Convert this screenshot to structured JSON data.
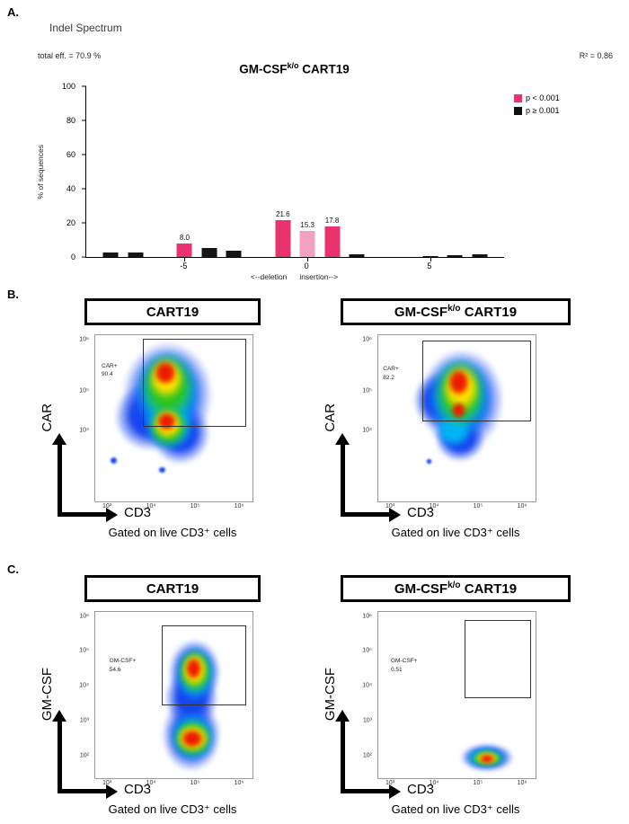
{
  "panel_a": {
    "label": "A.",
    "section_title": "Indel Spectrum",
    "total_eff": "total eff. = 70.9 %",
    "r_squared": "R² = 0.86",
    "title": {
      "pre": "GM-CSF",
      "sup": "k/o",
      "post": " CART19"
    },
    "legend": [
      {
        "label": "p < 0.001",
        "color": "#e8336d"
      },
      {
        "label": "p ≥ 0.001",
        "color": "#111111"
      }
    ],
    "ylabel": "% of sequences",
    "x_caption_left": "<--deletion",
    "x_caption_right": "insertion-->"
  },
  "chart_data": {
    "type": "bar",
    "title": "GM-CSF k/o CART19",
    "ylabel": "% of sequences",
    "xlabel": "<--deletion insertion-->",
    "ylim": [
      0,
      100
    ],
    "yticks": [
      0,
      20,
      40,
      60,
      80,
      100
    ],
    "xticks": [
      -5,
      0,
      5
    ],
    "xrange": [
      -9,
      8
    ],
    "grid": false,
    "legend_position": "top-right",
    "bars": [
      {
        "x": -8,
        "value": 2.5,
        "color": "black"
      },
      {
        "x": -7,
        "value": 2.5,
        "color": "black"
      },
      {
        "x": -5,
        "value": 8.0,
        "color": "pink",
        "label": "8.0"
      },
      {
        "x": -4,
        "value": 5.5,
        "color": "black"
      },
      {
        "x": -3,
        "value": 3.5,
        "color": "black"
      },
      {
        "x": -1,
        "value": 21.6,
        "color": "pink",
        "label": "21.6"
      },
      {
        "x": 0,
        "value": 15.3,
        "color": "lightpink",
        "label": "15.3"
      },
      {
        "x": 1,
        "value": 17.8,
        "color": "pink",
        "label": "17.8"
      },
      {
        "x": 2,
        "value": 1.5,
        "color": "black"
      },
      {
        "x": 5,
        "value": 0.7,
        "color": "black"
      },
      {
        "x": 6,
        "value": 1.3,
        "color": "black"
      },
      {
        "x": 7,
        "value": 1.8,
        "color": "black"
      }
    ],
    "colors": {
      "pink": "#e8336d",
      "lightpink": "#f2a0bd",
      "black": "#151515"
    }
  },
  "panel_b": {
    "label": "B.",
    "plots": [
      {
        "title": {
          "pre": "CART19",
          "sup": "",
          "post": ""
        },
        "gate_name": "CAR+",
        "gate_value": "90.4",
        "ylabel": "CAR",
        "xlabel": "CD3",
        "caption": "Gated on live CD3⁺ cells",
        "y_ticks": [
          "10⁶",
          "10⁵",
          "10⁴"
        ],
        "x_ticks": [
          "10³",
          "10⁴",
          "10⁵",
          "10⁶"
        ]
      },
      {
        "title": {
          "pre": "GM-CSF",
          "sup": "k/o",
          "post": " CART19"
        },
        "gate_name": "CAR+",
        "gate_value": "82.2",
        "ylabel": "CAR",
        "xlabel": "CD3",
        "caption": "Gated on live CD3⁺ cells",
        "y_ticks": [
          "10⁶",
          "10⁵",
          "10⁴"
        ],
        "x_ticks": [
          "10³",
          "10⁴",
          "10⁵",
          "10⁶"
        ]
      }
    ]
  },
  "panel_c": {
    "label": "C.",
    "plots": [
      {
        "title": {
          "pre": "CART19",
          "sup": "",
          "post": ""
        },
        "gate_name": "GM-CSF+",
        "gate_value": "54.6",
        "ylabel": "GM-CSF",
        "xlabel": "CD3",
        "caption": "Gated on live CD3⁺ cells",
        "y_ticks": [
          "10⁶",
          "10⁵",
          "10⁴",
          "10³",
          "10²"
        ],
        "x_ticks": [
          "10³",
          "10⁴",
          "10⁵",
          "10⁶"
        ]
      },
      {
        "title": {
          "pre": "GM-CSF",
          "sup": "k/o",
          "post": " CART19"
        },
        "gate_name": "GM-CSF+",
        "gate_value": "0.51",
        "ylabel": "GM-CSF",
        "xlabel": "CD3",
        "caption": "Gated on live CD3⁺ cells",
        "y_ticks": [
          "10⁶",
          "10⁵",
          "10⁴",
          "10³",
          "10²"
        ],
        "x_ticks": [
          "10³",
          "10⁴",
          "10⁵",
          "10⁶"
        ]
      }
    ]
  }
}
